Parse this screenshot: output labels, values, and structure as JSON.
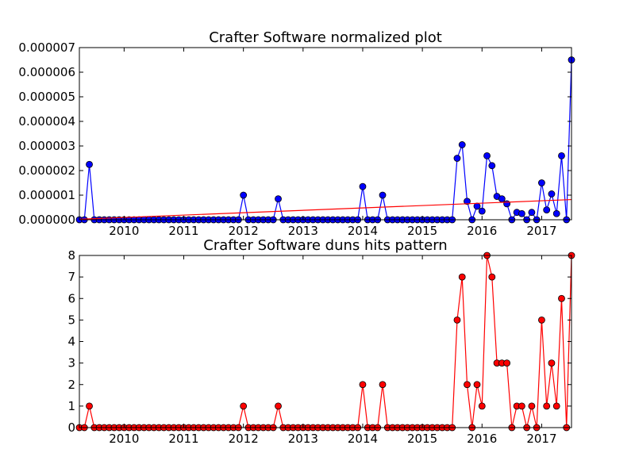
{
  "chart_data": [
    {
      "type": "line",
      "title": "Crafter Software normalized plot",
      "xlabel": "",
      "ylabel": "",
      "x_ticks": [
        "2010",
        "2011",
        "2012",
        "2013",
        "2014",
        "2015",
        "2016",
        "2017"
      ],
      "y_ticks": [
        "0.000000",
        "0.000001",
        "0.000002",
        "0.000003",
        "0.000004",
        "0.000005",
        "0.000006",
        "0.000007"
      ],
      "xlim": [
        "2009-04",
        "2017-07"
      ],
      "ylim": [
        0,
        7e-06
      ],
      "grid": false,
      "series": [
        {
          "color": "#0000ff",
          "marker": "circle",
          "x": [
            "2009-04",
            "2009-05",
            "2009-06",
            "2009-07",
            "2009-08",
            "2009-09",
            "2009-10",
            "2009-11",
            "2009-12",
            "2010-01",
            "2010-02",
            "2010-03",
            "2010-04",
            "2010-05",
            "2010-06",
            "2010-07",
            "2010-08",
            "2010-09",
            "2010-10",
            "2010-11",
            "2010-12",
            "2011-01",
            "2011-02",
            "2011-03",
            "2011-04",
            "2011-05",
            "2011-06",
            "2011-07",
            "2011-08",
            "2011-09",
            "2011-10",
            "2011-11",
            "2011-12",
            "2012-01",
            "2012-02",
            "2012-03",
            "2012-04",
            "2012-05",
            "2012-06",
            "2012-07",
            "2012-08",
            "2012-09",
            "2012-10",
            "2012-11",
            "2012-12",
            "2013-01",
            "2013-02",
            "2013-03",
            "2013-04",
            "2013-05",
            "2013-06",
            "2013-07",
            "2013-08",
            "2013-09",
            "2013-10",
            "2013-11",
            "2013-12",
            "2014-01",
            "2014-02",
            "2014-03",
            "2014-04",
            "2014-05",
            "2014-06",
            "2014-07",
            "2014-08",
            "2014-09",
            "2014-10",
            "2014-11",
            "2014-12",
            "2015-01",
            "2015-02",
            "2015-03",
            "2015-04",
            "2015-05",
            "2015-06",
            "2015-07",
            "2015-08",
            "2015-09",
            "2015-10",
            "2015-11",
            "2015-12",
            "2016-01",
            "2016-02",
            "2016-03",
            "2016-04",
            "2016-05",
            "2016-06",
            "2016-07",
            "2016-08",
            "2016-09",
            "2016-10",
            "2016-11",
            "2016-12",
            "2017-01",
            "2017-02",
            "2017-03",
            "2017-04",
            "2017-05",
            "2017-06",
            "2017-07"
          ],
          "y": [
            0,
            0,
            2.25e-06,
            0,
            0,
            0,
            0,
            0,
            0,
            0,
            0,
            0,
            0,
            0,
            0,
            0,
            0,
            0,
            0,
            0,
            0,
            0,
            0,
            0,
            0,
            0,
            0,
            0,
            0,
            0,
            0,
            0,
            0,
            1e-06,
            0,
            0,
            0,
            0,
            0,
            0,
            8.5e-07,
            0,
            0,
            0,
            0,
            0,
            0,
            0,
            0,
            0,
            0,
            0,
            0,
            0,
            0,
            0,
            0,
            1.35e-06,
            0,
            0,
            0,
            1e-06,
            0,
            0,
            0,
            0,
            0,
            0,
            0,
            0,
            0,
            0,
            0,
            0,
            0,
            0,
            2.5e-06,
            3.05e-06,
            7.5e-07,
            0,
            5.5e-07,
            3.5e-07,
            2.6e-06,
            2.2e-06,
            9.5e-07,
            8.5e-07,
            6.5e-07,
            0,
            3e-07,
            2.5e-07,
            0,
            3e-07,
            0,
            1.5e-06,
            4e-07,
            1.05e-06,
            2.5e-07,
            2.6e-06,
            0,
            6.5e-06
          ]
        },
        {
          "color": "#ff0000",
          "marker": "none",
          "x": [
            "2009-04",
            "2017-07"
          ],
          "y": [
            2e-08,
            8.2e-07
          ]
        }
      ]
    },
    {
      "type": "line",
      "title": "Crafter Software duns hits pattern",
      "xlabel": "",
      "ylabel": "",
      "x_ticks": [
        "2010",
        "2011",
        "2012",
        "2013",
        "2014",
        "2015",
        "2016",
        "2017"
      ],
      "y_ticks": [
        "0",
        "1",
        "2",
        "3",
        "4",
        "5",
        "6",
        "7",
        "8"
      ],
      "xlim": [
        "2009-04",
        "2017-07"
      ],
      "ylim": [
        0,
        8
      ],
      "grid": false,
      "series": [
        {
          "color": "#ff0000",
          "marker": "circle",
          "x": [
            "2009-04",
            "2009-05",
            "2009-06",
            "2009-07",
            "2009-08",
            "2009-09",
            "2009-10",
            "2009-11",
            "2009-12",
            "2010-01",
            "2010-02",
            "2010-03",
            "2010-04",
            "2010-05",
            "2010-06",
            "2010-07",
            "2010-08",
            "2010-09",
            "2010-10",
            "2010-11",
            "2010-12",
            "2011-01",
            "2011-02",
            "2011-03",
            "2011-04",
            "2011-05",
            "2011-06",
            "2011-07",
            "2011-08",
            "2011-09",
            "2011-10",
            "2011-11",
            "2011-12",
            "2012-01",
            "2012-02",
            "2012-03",
            "2012-04",
            "2012-05",
            "2012-06",
            "2012-07",
            "2012-08",
            "2012-09",
            "2012-10",
            "2012-11",
            "2012-12",
            "2013-01",
            "2013-02",
            "2013-03",
            "2013-04",
            "2013-05",
            "2013-06",
            "2013-07",
            "2013-08",
            "2013-09",
            "2013-10",
            "2013-11",
            "2013-12",
            "2014-01",
            "2014-02",
            "2014-03",
            "2014-04",
            "2014-05",
            "2014-06",
            "2014-07",
            "2014-08",
            "2014-09",
            "2014-10",
            "2014-11",
            "2014-12",
            "2015-01",
            "2015-02",
            "2015-03",
            "2015-04",
            "2015-05",
            "2015-06",
            "2015-07",
            "2015-08",
            "2015-09",
            "2015-10",
            "2015-11",
            "2015-12",
            "2016-01",
            "2016-02",
            "2016-03",
            "2016-04",
            "2016-05",
            "2016-06",
            "2016-07",
            "2016-08",
            "2016-09",
            "2016-10",
            "2016-11",
            "2016-12",
            "2017-01",
            "2017-02",
            "2017-03",
            "2017-04",
            "2017-05",
            "2017-06",
            "2017-07"
          ],
          "y": [
            0,
            0,
            1,
            0,
            0,
            0,
            0,
            0,
            0,
            0,
            0,
            0,
            0,
            0,
            0,
            0,
            0,
            0,
            0,
            0,
            0,
            0,
            0,
            0,
            0,
            0,
            0,
            0,
            0,
            0,
            0,
            0,
            0,
            1,
            0,
            0,
            0,
            0,
            0,
            0,
            1,
            0,
            0,
            0,
            0,
            0,
            0,
            0,
            0,
            0,
            0,
            0,
            0,
            0,
            0,
            0,
            0,
            2,
            0,
            0,
            0,
            2,
            0,
            0,
            0,
            0,
            0,
            0,
            0,
            0,
            0,
            0,
            0,
            0,
            0,
            0,
            5,
            7,
            2,
            0,
            2,
            1,
            8,
            7,
            3,
            3,
            3,
            0,
            1,
            1,
            0,
            1,
            0,
            5,
            1,
            3,
            1,
            6,
            0,
            8
          ]
        }
      ]
    }
  ]
}
